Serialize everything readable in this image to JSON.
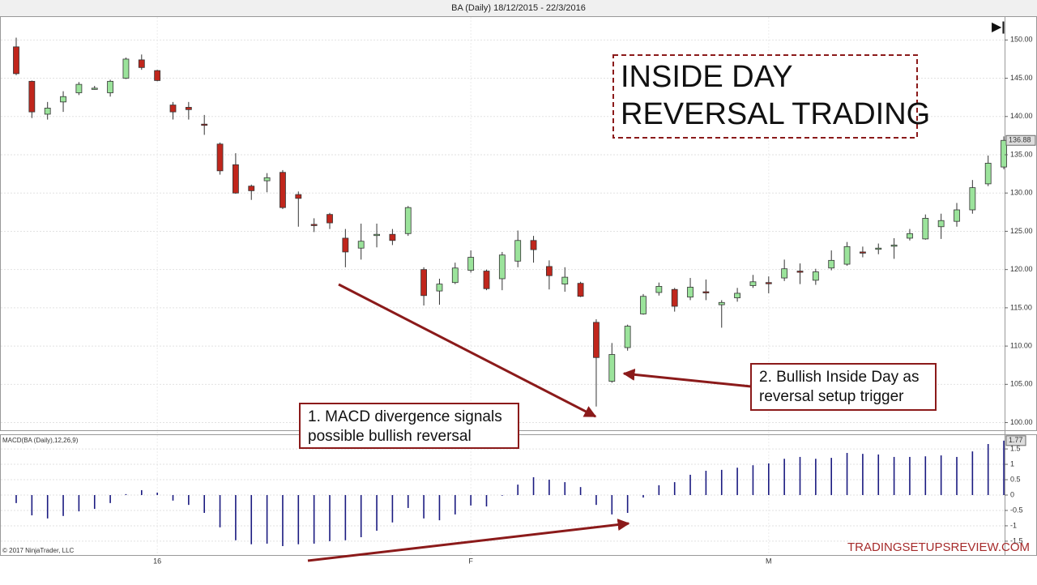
{
  "chart_data": [
    {
      "type": "candlestick",
      "title": "BA (Daily)  18/12/2015 - 22/3/2016",
      "categories": [
        null,
        null,
        null,
        null,
        null,
        null,
        null,
        null,
        null,
        "16",
        null,
        null,
        null,
        null,
        null,
        null,
        null,
        null,
        null,
        null,
        null,
        null,
        null,
        null,
        null,
        null,
        null,
        null,
        null,
        "F",
        null,
        null,
        null,
        null,
        null,
        null,
        null,
        null,
        null,
        null,
        null,
        null,
        null,
        null,
        null,
        null,
        null,
        null,
        "M",
        null,
        null,
        null,
        null,
        null,
        null,
        null,
        null,
        null,
        null,
        null,
        null,
        null,
        null,
        null
      ],
      "open": [
        149.1,
        144.6,
        140.3,
        141.9,
        143.1,
        143.6,
        143.1,
        145.0,
        147.4,
        146.0,
        141.5,
        141.2,
        139.0,
        136.4,
        133.7,
        130.9,
        131.6,
        132.7,
        129.8,
        125.9,
        127.2,
        124.1,
        122.8,
        124.5,
        124.6,
        124.7,
        120.0,
        117.2,
        118.3,
        119.9,
        119.8,
        118.8,
        121.1,
        123.8,
        120.4,
        118.1,
        118.2,
        113.1,
        105.4,
        109.8,
        114.2,
        117.0,
        117.4,
        116.4,
        117.1,
        115.4,
        116.3,
        117.9,
        118.3,
        118.9,
        119.8,
        118.6,
        120.2,
        120.7,
        122.3,
        122.7,
        123.1,
        124.1,
        124.0,
        125.6,
        126.3,
        127.8,
        131.2,
        133.4
      ],
      "high": [
        150.3,
        144.7,
        141.9,
        143.3,
        144.5,
        144.0,
        144.8,
        147.7,
        148.1,
        146.1,
        141.9,
        141.9,
        140.2,
        136.6,
        135.2,
        131.1,
        132.6,
        133.0,
        130.2,
        126.7,
        127.4,
        125.3,
        126.0,
        126.0,
        125.3,
        128.3,
        120.3,
        118.8,
        120.9,
        122.5,
        120.0,
        122.3,
        125.1,
        124.4,
        121.2,
        120.3,
        118.4,
        113.5,
        110.4,
        112.8,
        116.8,
        118.3,
        117.6,
        118.9,
        118.7,
        116.0,
        117.6,
        119.3,
        119.1,
        121.3,
        120.8,
        120.1,
        122.5,
        123.6,
        123.0,
        123.4,
        124.1,
        125.3,
        127.2,
        127.3,
        128.7,
        131.7,
        134.9,
        137.4
      ],
      "low": [
        145.4,
        139.8,
        139.6,
        140.6,
        142.8,
        143.5,
        142.6,
        144.9,
        146.1,
        144.6,
        139.6,
        139.6,
        137.6,
        132.4,
        129.9,
        129.1,
        130.1,
        127.9,
        125.6,
        124.9,
        125.3,
        120.3,
        121.3,
        122.9,
        123.2,
        124.4,
        115.3,
        115.4,
        118.1,
        119.6,
        117.3,
        117.3,
        120.3,
        120.9,
        117.4,
        117.1,
        116.4,
        102.1,
        105.2,
        109.4,
        114.1,
        116.6,
        114.5,
        116.0,
        116.0,
        112.4,
        115.8,
        117.6,
        116.9,
        118.5,
        118.1,
        118.0,
        119.9,
        120.5,
        121.6,
        122.0,
        121.4,
        123.8,
        123.9,
        124.0,
        125.6,
        127.3,
        130.9,
        133.1
      ],
      "close": [
        145.6,
        140.6,
        141.1,
        142.6,
        144.2,
        143.7,
        144.6,
        147.5,
        146.4,
        144.7,
        140.6,
        140.9,
        138.9,
        132.9,
        130.0,
        130.3,
        132.0,
        128.1,
        129.3,
        125.8,
        126.1,
        122.3,
        123.7,
        124.6,
        123.8,
        128.1,
        116.6,
        118.1,
        120.2,
        121.6,
        117.5,
        121.9,
        123.8,
        122.6,
        119.2,
        119.0,
        116.5,
        108.5,
        108.9,
        112.6,
        116.5,
        117.8,
        115.2,
        117.7,
        117.0,
        115.7,
        116.9,
        118.4,
        118.2,
        120.1,
        119.7,
        119.7,
        121.2,
        123.0,
        122.2,
        122.8,
        123.2,
        124.7,
        126.7,
        126.4,
        127.8,
        130.7,
        133.9,
        136.88
      ],
      "up_color": "#9be39b",
      "down_color": "#c0261c",
      "ylim": [
        99,
        153
      ],
      "yticks": [
        {
          "value": 100,
          "label": "100.00"
        },
        {
          "value": 105,
          "label": "105.00"
        },
        {
          "value": 110,
          "label": "110.00"
        },
        {
          "value": 115,
          "label": "115.00"
        },
        {
          "value": 120,
          "label": "120.00"
        },
        {
          "value": 125,
          "label": "125.00"
        },
        {
          "value": 130,
          "label": "130.00"
        },
        {
          "value": 135,
          "label": "135.00"
        },
        {
          "value": 140,
          "label": "140.00"
        },
        {
          "value": 145,
          "label": "145.00"
        },
        {
          "value": 150,
          "label": "150.00"
        }
      ],
      "grid": true
    },
    {
      "type": "bar",
      "title": "MACD(BA (Daily),12,26,9)",
      "values": [
        -0.26,
        -0.66,
        -0.76,
        -0.68,
        -0.53,
        -0.45,
        -0.26,
        0.03,
        0.16,
        0.08,
        -0.18,
        -0.32,
        -0.58,
        -1.05,
        -1.47,
        -1.6,
        -1.58,
        -1.66,
        -1.6,
        -1.58,
        -1.5,
        -1.47,
        -1.37,
        -1.16,
        -0.89,
        -0.42,
        -0.76,
        -0.82,
        -0.63,
        -0.34,
        -0.37,
        -0.02,
        0.34,
        0.58,
        0.5,
        0.42,
        0.26,
        -0.32,
        -0.63,
        -0.58,
        -0.08,
        0.32,
        0.42,
        0.66,
        0.79,
        0.82,
        0.89,
        0.97,
        1.03,
        1.18,
        1.24,
        1.18,
        1.21,
        1.37,
        1.34,
        1.32,
        1.24,
        1.24,
        1.26,
        1.29,
        1.24,
        1.42,
        1.66,
        1.77
      ],
      "color": "#1a1a80",
      "ylim": [
        -1.95,
        1.95
      ],
      "yticks": [
        -1.5,
        -1,
        -0.5,
        0,
        0.5,
        1,
        1.5
      ],
      "grid": true
    }
  ],
  "headline": [
    "INSIDE DAY",
    "REVERSAL TRADING"
  ],
  "annotations": [
    [
      "1. MACD divergence signals",
      "possible bullish reversal"
    ],
    [
      "2. Bullish Inside Day as",
      "reversal setup trigger"
    ]
  ],
  "copyright": "© 2017 NinjaTrader, LLC",
  "watermark": "TRADINGSETUPSREVIEW.COM"
}
